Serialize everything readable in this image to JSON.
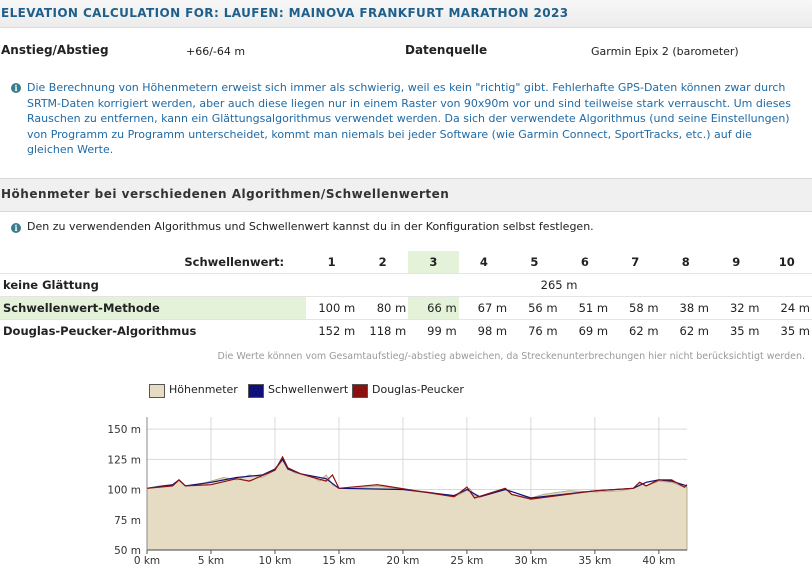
{
  "header": {
    "title": "ELEVATION CALCULATION FOR: LAUFEN: MAINOVA FRANKFURT MARATHON 2023"
  },
  "summary": {
    "ascent_label": "Anstieg/Abstieg",
    "ascent_value": "+66/-64 m",
    "source_label": "Datenquelle",
    "source_value": "Garmin Epix 2 (barometer)"
  },
  "info_text": "Die Berechnung von Höhenmetern erweist sich immer als schwierig, weil es kein \"richtig\" gibt. Fehlerhafte GPS-Daten können zwar durch SRTM-Daten korrigiert werden, aber auch diese liegen nur in einem Raster von 90x90m vor und sind teilweise stark verrauscht. Um dieses Rauschen zu entfernen, kann ein Glättungsalgorithmus verwendet werden. Da sich der verwendete Algorithmus (und seine Einstellungen) von Programm zu Programm unterscheidet, kommt man niemals bei jeder Software (wie Garmin Connect, SportTracks, etc.) auf die gleichen Werte.",
  "section_title": "Höhenmeter bei verschiedenen Algorithmen/Schwellenwerten",
  "config_note": "Den zu verwendenden Algorithmus und Schwellenwert kannst du in der Konfiguration selbst festlegen.",
  "table": {
    "threshold_label": "Schwellenwert:",
    "thresholds": [
      "1",
      "2",
      "3",
      "4",
      "5",
      "6",
      "7",
      "8",
      "9",
      "10"
    ],
    "selected_index": 2,
    "rows": [
      {
        "name": "keine Glättung",
        "single": "265 m"
      },
      {
        "name": "Schwellenwert-Methode",
        "values": [
          "100 m",
          "80 m",
          "66 m",
          "67 m",
          "56 m",
          "51 m",
          "58 m",
          "38 m",
          "32 m",
          "24 m"
        ]
      },
      {
        "name": "Douglas-Peucker-Algorithmus",
        "values": [
          "152 m",
          "118 m",
          "99 m",
          "98 m",
          "76 m",
          "69 m",
          "62 m",
          "62 m",
          "35 m",
          "35 m"
        ]
      }
    ]
  },
  "footnote": "Die Werte können vom Gesamtaufstieg/-abstieg abweichen, da Streckenunterbrechungen hier nicht berücksichtigt werden.",
  "legend": [
    {
      "label": "Höhenmeter",
      "color": "#e6dcc4"
    },
    {
      "label": "Schwellenwert",
      "color": "#10107a"
    },
    {
      "label": "Douglas-Peucker",
      "color": "#8b1010"
    }
  ],
  "chart_data": {
    "type": "area",
    "x_ticks": [
      "0 km",
      "5 km",
      "10 km",
      "15 km",
      "20 km",
      "25 km",
      "30 km",
      "35 km",
      "40 km"
    ],
    "y_ticks": [
      "50 m",
      "75 m",
      "100 m",
      "125 m",
      "150 m"
    ],
    "xlim": [
      0,
      42.2
    ],
    "ylim": [
      50,
      160
    ],
    "series": [
      {
        "name": "Höhenmeter",
        "x": [
          0,
          1,
          2,
          2.5,
          3,
          4,
          5,
          6,
          7,
          8,
          9,
          10,
          10.6,
          11,
          11.5,
          12,
          13,
          13.5,
          14,
          14.5,
          15,
          16,
          18,
          20,
          22,
          24,
          24.8,
          25.2,
          25.6,
          26,
          27,
          28,
          28.5,
          29,
          30,
          31,
          33,
          35,
          37,
          38,
          38.5,
          39,
          40,
          41,
          42,
          42.2
        ],
        "y": [
          101,
          103,
          104,
          108,
          103,
          104,
          107,
          110,
          108,
          112,
          110,
          116,
          124,
          118,
          114,
          113,
          110,
          107,
          112,
          104,
          101,
          101,
          103,
          100,
          98,
          94,
          98,
          101,
          95,
          94,
          97,
          101,
          96,
          95,
          93,
          96,
          99,
          98,
          99,
          101,
          106,
          103,
          107,
          106,
          102,
          102
        ]
      },
      {
        "name": "Schwellenwert",
        "x": [
          0,
          2,
          2.5,
          3,
          5,
          7,
          9,
          10,
          10.6,
          11,
          12,
          14,
          15,
          20,
          24,
          25,
          26,
          28,
          30,
          35,
          38,
          39,
          40,
          41,
          42.2
        ],
        "y": [
          101,
          104,
          108,
          103,
          106,
          110,
          112,
          117,
          125,
          117,
          113,
          109,
          101,
          100,
          95,
          100,
          94,
          100,
          93,
          99,
          101,
          106,
          108,
          107,
          103
        ]
      },
      {
        "name": "Douglas-Peucker",
        "x": [
          0,
          2,
          2.5,
          3,
          5,
          7,
          8,
          10,
          10.6,
          11,
          12,
          13,
          14,
          14.5,
          15,
          18,
          24,
          25,
          25.6,
          28,
          28.5,
          30,
          35,
          38,
          38.5,
          39,
          40,
          41,
          42,
          42.2
        ],
        "y": [
          101,
          103,
          108,
          103,
          104,
          109,
          107,
          116,
          127,
          118,
          113,
          110,
          107,
          112,
          101,
          104,
          94,
          102,
          93,
          101,
          96,
          92,
          99,
          101,
          106,
          103,
          108,
          108,
          102,
          104
        ]
      }
    ]
  }
}
